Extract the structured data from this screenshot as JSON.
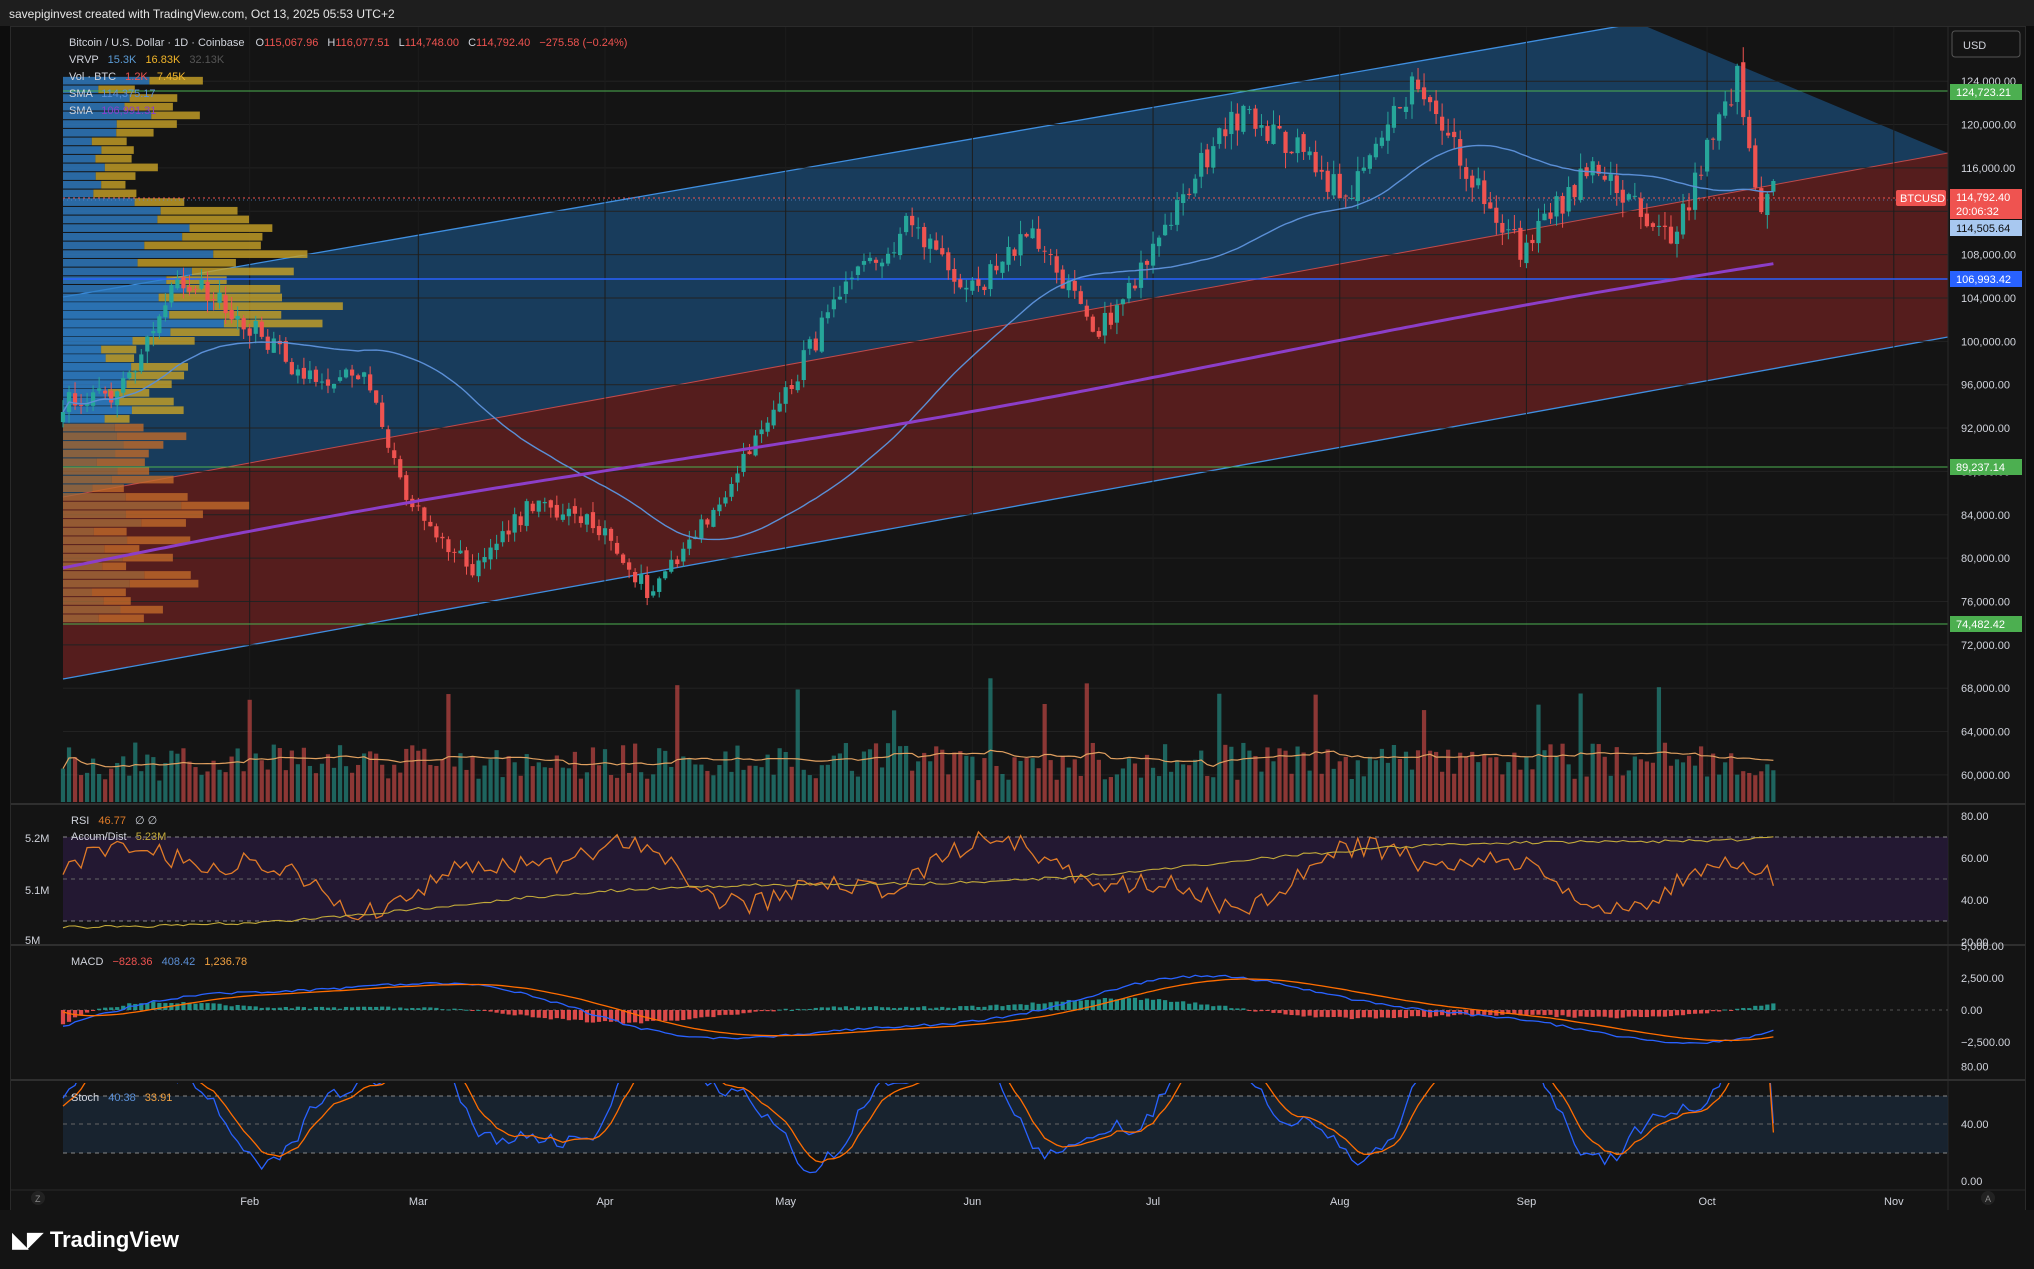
{
  "header": {
    "attribution": "savepiginvest created with TradingView.com, Oct 13, 2025 05:53 UTC+2"
  },
  "legend": {
    "title": "Bitcoin / U.S. Dollar · 1D · Coinbase",
    "o_label": "O",
    "o": "115,067.96",
    "h_label": "H",
    "h": "116,077.51",
    "l_label": "L",
    "l": "114,748.00",
    "c_label": "C",
    "c": "114,792.40",
    "change": "−275.58 (−0.24%)",
    "vrvp_label": "VRVP",
    "vrvp_a": "15.3K",
    "vrvp_b": "16.83K",
    "vrvp_c": "32.13K",
    "vol_label": "Vol · BTC",
    "vol_a": "1.2K",
    "vol_b": "7.45K",
    "sma1_label": "SMA",
    "sma1": "114,375.17",
    "sma2_label": "SMA",
    "sma2": "106,991.31"
  },
  "currency": "USD",
  "price_axis": [
    "124,000.00",
    "120,000.00",
    "116,000.00",
    "112,000.00",
    "108,000.00",
    "104,000.00",
    "100,000.00",
    "96,000.00",
    "92,000.00",
    "88,000.00",
    "84,000.00",
    "80,000.00",
    "76,000.00",
    "72,000.00",
    "68,000.00",
    "64,000.00",
    "60,000.00"
  ],
  "price_tags": {
    "level_top": "124,723.21",
    "btc_symbol": "BTCUSD",
    "last": "114,792.40",
    "countdown": "20:06:32",
    "sma_fast": "114,505.64",
    "sma_slow": "106,993.42",
    "level_mid": "89,237.14",
    "level_low": "74,482.42"
  },
  "rsi": {
    "label": "RSI",
    "value": "46.77",
    "extra": "∅ ∅",
    "ad_label": "Accum/Dist",
    "ad_value": "5.23M",
    "axis": [
      "80.00",
      "60.00",
      "40.00",
      "20.00"
    ],
    "left_axis": [
      "5.2M",
      "5.1M",
      "5M"
    ]
  },
  "macd": {
    "label": "MACD",
    "v1": "−828.36",
    "v2": "408.42",
    "v3": "1,236.78",
    "axis": [
      "5,000.00",
      "2,500.00",
      "0.00",
      "−2,500.00"
    ]
  },
  "stoch": {
    "label": "Stoch",
    "k": "40.38",
    "d": "33.91",
    "axis": [
      "80.00",
      "40.00",
      "0.00"
    ]
  },
  "time_axis": [
    "Feb",
    "Mar",
    "Apr",
    "May",
    "Jun",
    "Jul",
    "Aug",
    "Sep",
    "Oct",
    "Nov"
  ],
  "corner_labels": {
    "left": "Z",
    "right": "A"
  },
  "brand": "TradingView",
  "colors": {
    "up": "#26a69a",
    "down": "#ef5350",
    "sma_fast": "#5b8fd6",
    "sma_slow": "#8c3ec8",
    "channel_up": "#1d5a8a",
    "channel_down": "#7a2424",
    "level": "#4caf50"
  },
  "chart_data": {
    "type": "candlestick",
    "title": "Bitcoin / U.S. Dollar · 1D · Coinbase",
    "x_range": [
      "2025-01-01",
      "2025-11-10"
    ],
    "y_range": [
      57500,
      129000
    ],
    "key_closes": [
      {
        "date": "2025-01-01",
        "value": 94500
      },
      {
        "date": "2025-01-10",
        "value": 95000
      },
      {
        "date": "2025-01-20",
        "value": 106000
      },
      {
        "date": "2025-01-31",
        "value": 102000
      },
      {
        "date": "2025-02-10",
        "value": 97000
      },
      {
        "date": "2025-02-20",
        "value": 96500
      },
      {
        "date": "2025-02-28",
        "value": 84500
      },
      {
        "date": "2025-03-10",
        "value": 79000
      },
      {
        "date": "2025-03-20",
        "value": 85000
      },
      {
        "date": "2025-03-31",
        "value": 83000
      },
      {
        "date": "2025-04-08",
        "value": 77000
      },
      {
        "date": "2025-04-20",
        "value": 85000
      },
      {
        "date": "2025-04-30",
        "value": 94500
      },
      {
        "date": "2025-05-10",
        "value": 104000
      },
      {
        "date": "2025-05-22",
        "value": 111000
      },
      {
        "date": "2025-06-01",
        "value": 104500
      },
      {
        "date": "2025-06-10",
        "value": 110000
      },
      {
        "date": "2025-06-22",
        "value": 101000
      },
      {
        "date": "2025-06-30",
        "value": 107500
      },
      {
        "date": "2025-07-14",
        "value": 121000
      },
      {
        "date": "2025-07-25",
        "value": 118000
      },
      {
        "date": "2025-08-02",
        "value": 113000
      },
      {
        "date": "2025-08-13",
        "value": 123500
      },
      {
        "date": "2025-08-22",
        "value": 116000
      },
      {
        "date": "2025-08-31",
        "value": 108500
      },
      {
        "date": "2025-09-12",
        "value": 116000
      },
      {
        "date": "2025-09-25",
        "value": 109000
      },
      {
        "date": "2025-10-06",
        "value": 124500
      },
      {
        "date": "2025-10-10",
        "value": 112000
      },
      {
        "date": "2025-10-12",
        "value": 114792.4
      }
    ],
    "sma_fast_last": 114505.64,
    "sma_slow_last": 106993.42,
    "horizontal_levels": [
      124723.21,
      89237.14,
      74482.42
    ]
  }
}
